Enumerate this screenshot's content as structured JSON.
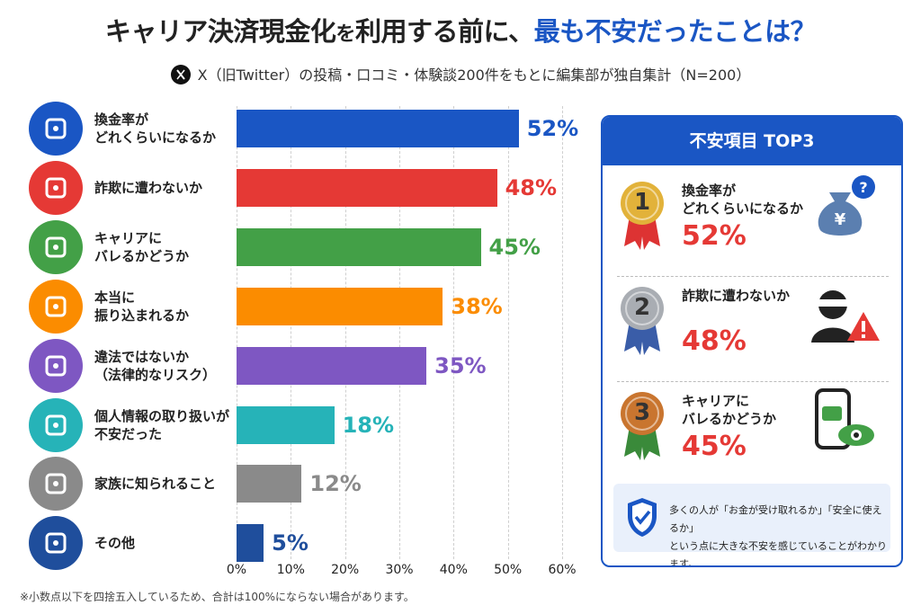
{
  "title_parts": [
    "キャリア決済現金化",
    "を",
    "利用する前に、",
    "最も不安だったことは？"
  ],
  "subtitle": "X（旧Twitter）の投稿・口コミ・体験談200件をもとに編集部が独自集計（N=200）",
  "chart_data": {
    "type": "bar",
    "orientation": "horizontal",
    "categories": [
      "換金率が\nどれくらいになるか",
      "詐欺に遭わないか",
      "キャリアに\nバレるかどうか",
      "本当に\n振り込まれるか",
      "違法ではないか\n（法律的なリスク）",
      "個人情報の取り扱いが\n不安だった",
      "家族に知られること",
      "その他"
    ],
    "values": [
      52,
      48,
      45,
      38,
      35,
      18,
      12,
      5
    ],
    "value_labels": [
      "52%",
      "48%",
      "45%",
      "38%",
      "35%",
      "18%",
      "12%",
      "5%"
    ],
    "colors": [
      "#1a56c4",
      "#e53935",
      "#43a047",
      "#fb8c00",
      "#7e57c2",
      "#26b3b8",
      "#8a8a8a",
      "#1f4e9c"
    ],
    "xlim": [
      0,
      60
    ],
    "xticks": [
      {
        "value": 0,
        "label": "0%"
      },
      {
        "value": 10,
        "label": "10%"
      },
      {
        "value": 20,
        "label": "20%"
      },
      {
        "value": 30,
        "label": "30%"
      },
      {
        "value": 40,
        "label": "40%"
      },
      {
        "value": 50,
        "label": "50%"
      },
      {
        "value": 60,
        "label": "60%"
      }
    ],
    "grid": true
  },
  "top3": {
    "title": "不安項目 TOP3",
    "items": [
      {
        "rank": "1",
        "label": "換金率が\nどれくらいになるか",
        "value": "52%"
      },
      {
        "rank": "2",
        "label": "詐欺に遭わないか",
        "value": "48%"
      },
      {
        "rank": "3",
        "label": "キャリアに\nバレるかどうか",
        "value": "45%"
      }
    ],
    "note": "多くの人が「お金が受け取れるか」「安全に使えるか」\nという点に大きな不安を感じていることがわかります。"
  },
  "footnote": "※小数点以下を四捨五入しているため、合計は100%にならない場合があります。"
}
